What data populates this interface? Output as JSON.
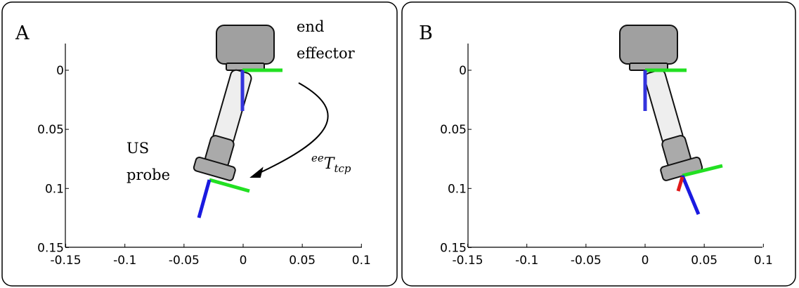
{
  "panels": [
    {
      "label": "A",
      "xticks": [
        -0.15,
        -0.1,
        -0.05,
        0,
        0.05,
        0.1
      ],
      "yticks": [
        0,
        0.05,
        0.1,
        0.15
      ],
      "annotations": {
        "end_effector": [
          "end",
          "effector"
        ],
        "us_probe": [
          "US",
          "probe"
        ],
        "transform": {
          "superscript": "ee",
          "base": "T",
          "subscript": "tcp"
        }
      }
    },
    {
      "label": "B",
      "xticks": [
        -0.15,
        -0.1,
        -0.05,
        0,
        0.05,
        0.1
      ],
      "yticks": [
        0,
        0.05,
        0.1,
        0.15
      ]
    }
  ]
}
